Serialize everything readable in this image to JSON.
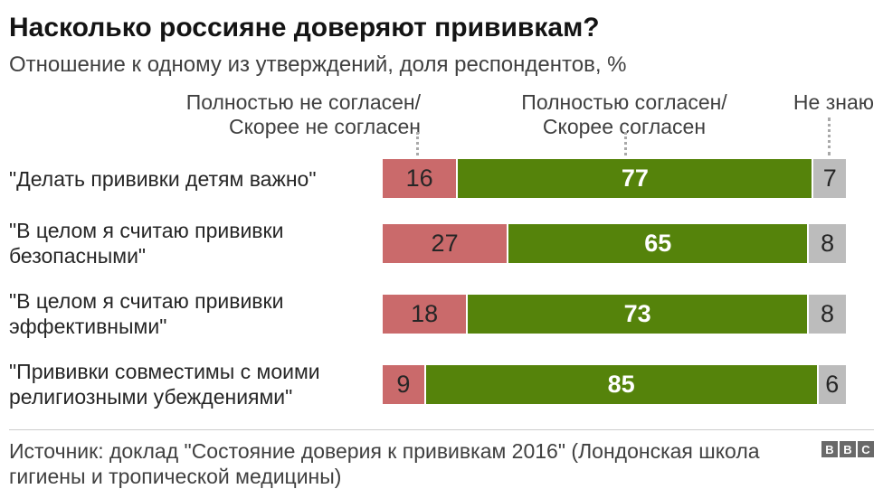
{
  "header": {
    "title": "Насколько россияне доверяют прививкам?",
    "subtitle": "Отношение к одному из утверждений, доля респондентов, %"
  },
  "legend": {
    "disagree_line1": "Полностью не согласен/",
    "disagree_line2": "Скорее не согласен",
    "agree_line1": "Полностью согласен/",
    "agree_line2": "Скорее согласен",
    "dontknow": "Не знаю"
  },
  "chart_data": {
    "type": "bar",
    "orientation": "horizontal",
    "stacked": true,
    "unit": "%",
    "xlim": [
      0,
      100
    ],
    "categories": [
      "\"Делать прививки детям важно\"",
      "\"В целом я считаю прививки безопасными\"",
      "\"В целом я считаю прививки эффективными\"",
      "\"Прививки совместимы с моими религиозными убеждениями\""
    ],
    "series": [
      {
        "key": "disagree",
        "name": "Полностью не согласен/ Скорее не согласен",
        "color": "#ca6a6b",
        "text_color": "#262626",
        "bold_values": false,
        "values": [
          16,
          27,
          18,
          9
        ]
      },
      {
        "key": "agree",
        "name": "Полностью согласен/ Скорее согласен",
        "color": "#55830b",
        "text_color": "#ffffff",
        "bold_values": true,
        "values": [
          77,
          65,
          73,
          85
        ]
      },
      {
        "key": "dontknow",
        "name": "Не знаю",
        "color": "#bcbcbc",
        "text_color": "#262626",
        "bold_values": false,
        "values": [
          7,
          8,
          8,
          6
        ]
      }
    ]
  },
  "footer": {
    "source": "Источник: доклад \"Состояние доверия к прививкам 2016\" (Лондонская школа гигиены и тропической медицины)",
    "logo_letters": [
      "B",
      "B",
      "C"
    ]
  },
  "colors": {
    "disagree": "#ca6a6b",
    "agree": "#55830b",
    "dontknow": "#bcbcbc",
    "rule": "#cccccc",
    "leader_dots": "#a9a9a9",
    "logo_bg": "#696969"
  }
}
